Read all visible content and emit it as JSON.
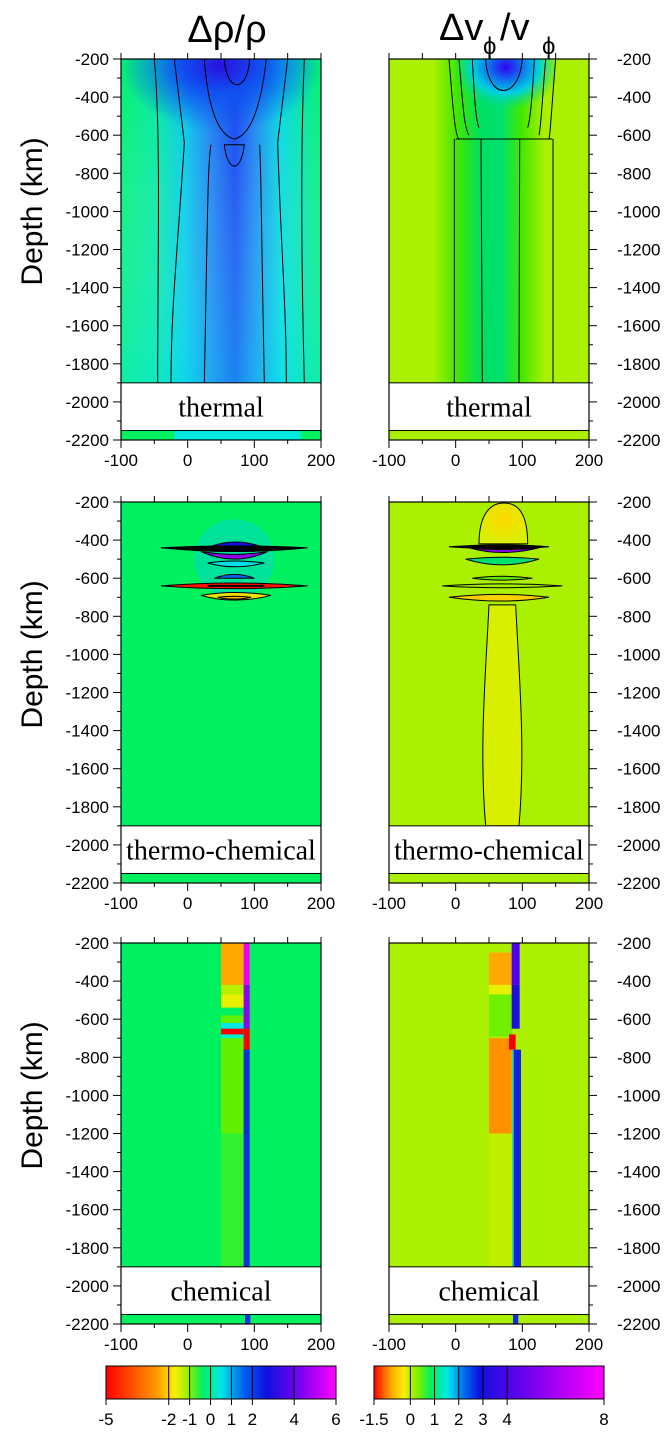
{
  "header": {
    "left_title": "Δρ/ρ",
    "right_title_main": "Δv",
    "right_title_sub": "ϕ",
    "right_title_slash": "/v",
    "right_title_sub2": "ϕ"
  },
  "axis_label": "Depth (km)",
  "colors": {
    "background_green": "#00f060",
    "background_yellowgreen": "#aaf000",
    "deep_blue": "#1010e0",
    "cyan": "#00e8f0",
    "purple": "#9000f0",
    "magenta": "#f000f0",
    "red": "#ff1000",
    "orange": "#ff9a00",
    "yellow": "#f8e000"
  },
  "chart_data": [
    {
      "type": "heatmap",
      "panel": "thermal-density",
      "column_title": "Δρ/ρ",
      "label": "thermal",
      "ylabel": "Depth (km)",
      "xlim": [
        -100,
        200
      ],
      "ylim": [
        -2200,
        -200
      ],
      "xticks": [
        -100,
        0,
        100,
        200
      ],
      "yticks": [
        -200,
        -400,
        -600,
        -800,
        -1000,
        -1200,
        -1400,
        -1600,
        -1800,
        -2000,
        -2200
      ]
    },
    {
      "type": "heatmap",
      "panel": "thermal-velocity",
      "column_title": "Δvϕ/vϕ",
      "label": "thermal",
      "xlim": [
        -100,
        200
      ],
      "ylim": [
        -2200,
        -200
      ],
      "xticks": [
        -100,
        0,
        100,
        200
      ],
      "yticks": [
        -200,
        -400,
        -600,
        -800,
        -1000,
        -1200,
        -1400,
        -1600,
        -1800,
        -2000,
        -2200
      ]
    },
    {
      "type": "heatmap",
      "panel": "thermochemical-density",
      "label": "thermo-chemical",
      "ylabel": "Depth (km)",
      "xlim": [
        -100,
        200
      ],
      "ylim": [
        -2200,
        -200
      ],
      "xticks": [
        -100,
        0,
        100,
        200
      ],
      "yticks": [
        -200,
        -400,
        -600,
        -800,
        -1000,
        -1200,
        -1400,
        -1600,
        -1800,
        -2000,
        -2200
      ]
    },
    {
      "type": "heatmap",
      "panel": "thermochemical-velocity",
      "label": "thermo-chemical",
      "xlim": [
        -100,
        200
      ],
      "ylim": [
        -2200,
        -200
      ],
      "xticks": [
        -100,
        0,
        100,
        200
      ],
      "yticks": [
        -200,
        -400,
        -600,
        -800,
        -1000,
        -1200,
        -1400,
        -1600,
        -1800,
        -2000,
        -2200
      ]
    },
    {
      "type": "heatmap",
      "panel": "chemical-density",
      "label": "chemical",
      "ylabel": "Depth (km)",
      "xlim": [
        -100,
        200
      ],
      "ylim": [
        -2200,
        -200
      ],
      "xticks": [
        -100,
        0,
        100,
        200
      ],
      "yticks": [
        -200,
        -400,
        -600,
        -800,
        -1000,
        -1200,
        -1400,
        -1600,
        -1800,
        -2000,
        -2200
      ]
    },
    {
      "type": "heatmap",
      "panel": "chemical-velocity",
      "label": "chemical",
      "xlim": [
        -100,
        200
      ],
      "ylim": [
        -2200,
        -200
      ],
      "xticks": [
        -100,
        0,
        100,
        200
      ],
      "yticks": [
        -200,
        -400,
        -600,
        -800,
        -1000,
        -1200,
        -1400,
        -1600,
        -1800,
        -2000,
        -2200
      ]
    }
  ],
  "colorbars": [
    {
      "name": "density",
      "range": [
        -5,
        6
      ],
      "ticks": [
        "-5",
        "-2",
        "-1",
        "0",
        "1",
        "2",
        "4",
        "6"
      ],
      "tick_values": [
        -5,
        -2,
        -1,
        0,
        1,
        2,
        4,
        6
      ]
    },
    {
      "name": "velocity",
      "range": [
        -1.5,
        8
      ],
      "ticks": [
        "-1.5",
        "0",
        "1",
        "2",
        "3",
        "4",
        "8"
      ],
      "tick_values": [
        -1.5,
        0,
        1,
        2,
        3,
        4,
        8
      ]
    }
  ]
}
